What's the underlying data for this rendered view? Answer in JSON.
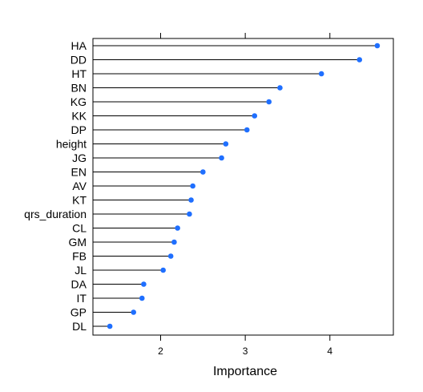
{
  "chart_data": {
    "type": "dot",
    "orientation": "horizontal",
    "xlabel": "Importance",
    "ylabel": "",
    "title": "",
    "xlim": [
      1.2,
      4.75
    ],
    "xticks": [
      2,
      3,
      4
    ],
    "xtick_labels": [
      "2",
      "3",
      "4"
    ],
    "grid": false,
    "legend": "none",
    "categories": [
      "HA",
      "DD",
      "HT",
      "BN",
      "KG",
      "KK",
      "DP",
      "height",
      "JG",
      "EN",
      "AV",
      "KT",
      "qrs_duration",
      "CL",
      "GM",
      "FB",
      "JL",
      "DA",
      "IT",
      "GP",
      "DL"
    ],
    "values": [
      4.56,
      4.35,
      3.9,
      3.41,
      3.28,
      3.11,
      3.02,
      2.77,
      2.72,
      2.5,
      2.38,
      2.36,
      2.34,
      2.2,
      2.16,
      2.12,
      2.03,
      1.8,
      1.78,
      1.68,
      1.4
    ],
    "marker_color": "#1f6fff",
    "line_color": "#000000"
  }
}
